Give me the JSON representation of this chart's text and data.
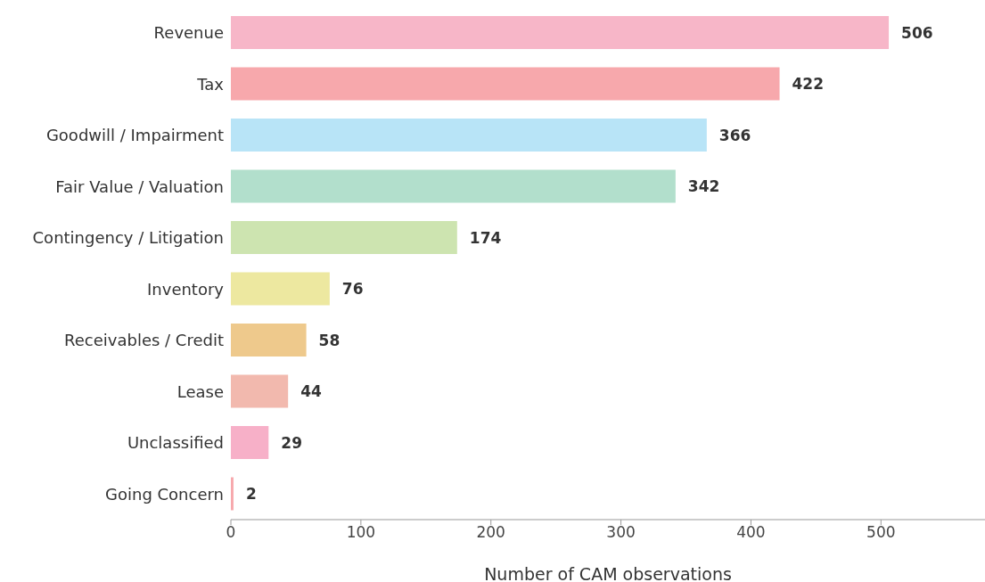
{
  "chart_data": {
    "type": "bar",
    "orientation": "horizontal",
    "xlabel": "Number of CAM observations",
    "categories": [
      "Revenue",
      "Tax",
      "Goodwill / Impairment",
      "Fair Value / Valuation",
      "Contingency / Litigation",
      "Inventory",
      "Receivables / Credit",
      "Lease",
      "Unclassified",
      "Going Concern"
    ],
    "values": [
      506,
      422,
      366,
      342,
      174,
      76,
      58,
      44,
      29,
      2
    ],
    "colors": [
      "#f7b6c8",
      "#f7a8ac",
      "#b8e4f7",
      "#b2dfcc",
      "#cde4b0",
      "#ede8a0",
      "#eec98c",
      "#f2b9ae",
      "#f7b0c8",
      "#f7a8ac"
    ],
    "xlim": [
      0,
      580
    ],
    "xticks": [
      0,
      100,
      200,
      300,
      400,
      500
    ],
    "grid": false,
    "legend": false,
    "data_labels": true
  }
}
